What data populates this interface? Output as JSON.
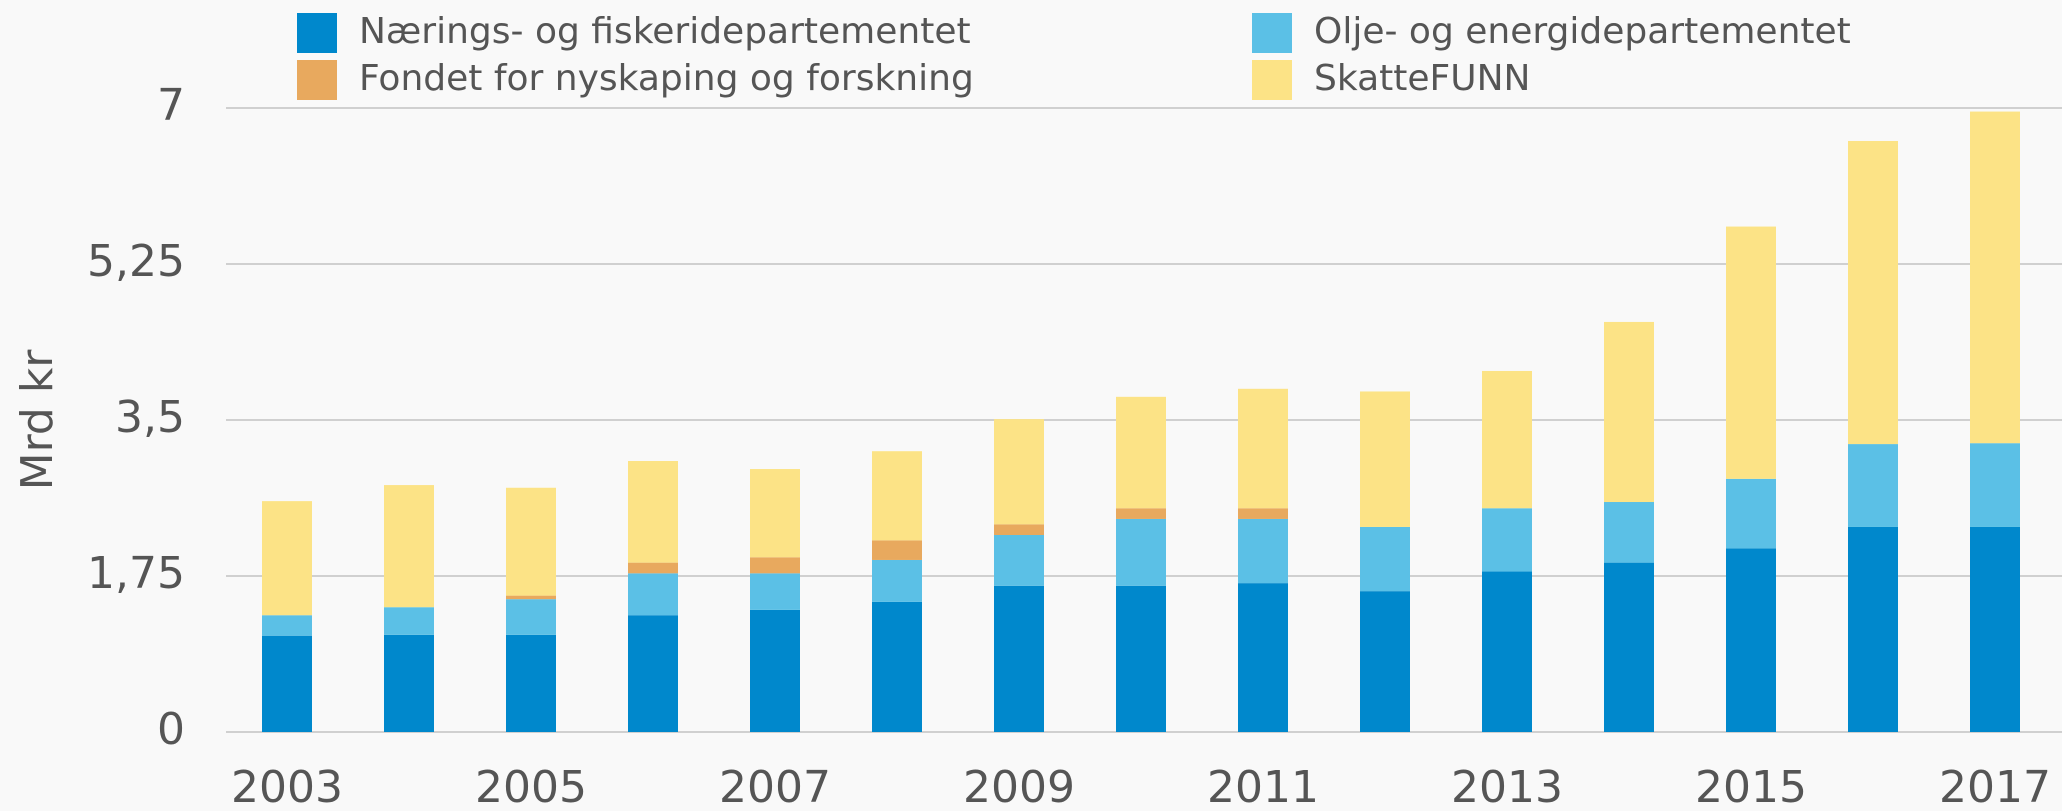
{
  "chart_data": {
    "type": "stacked_bar",
    "y_label": "Mrd kr",
    "categories": [
      "2003",
      null,
      "2005",
      null,
      "2007",
      null,
      "2009",
      null,
      "2011",
      null,
      "2013",
      null,
      "2015",
      null,
      "2017"
    ],
    "series": [
      {
        "name": "Nærings- og fiskeridepartementet",
        "color": "#0088cc",
        "values": [
          1.08,
          1.09,
          1.09,
          1.31,
          1.37,
          1.46,
          1.64,
          1.64,
          1.67,
          1.58,
          1.8,
          1.9,
          2.06,
          2.3,
          2.3
        ]
      },
      {
        "name": "Olje- og energidepartementet",
        "color": "#5bc0e6",
        "values": [
          0.23,
          0.31,
          0.4,
          0.47,
          0.41,
          0.47,
          0.57,
          0.75,
          0.72,
          0.72,
          0.71,
          0.68,
          0.78,
          0.93,
          0.94
        ]
      },
      {
        "name": "Fondet for nyskaping og forskning",
        "color": "#e8a95e",
        "values": [
          0,
          0,
          0.04,
          0.12,
          0.18,
          0.22,
          0.12,
          0.12,
          0.12,
          0,
          0,
          0,
          0,
          0,
          0
        ]
      },
      {
        "name": "SkatteFUNN",
        "color": "#fce386",
        "values": [
          1.28,
          1.37,
          1.21,
          1.14,
          0.99,
          1.0,
          1.18,
          1.25,
          1.34,
          1.52,
          1.54,
          2.02,
          2.83,
          3.4,
          3.72
        ]
      }
    ],
    "ylim": [
      0,
      7
    ],
    "yticks": [
      0,
      {
        "value": 1.75,
        "label": "1,75"
      },
      {
        "value": 3.5,
        "label": "3,5"
      },
      {
        "value": 5.25,
        "label": "5,25"
      },
      7
    ],
    "grid": true
  }
}
